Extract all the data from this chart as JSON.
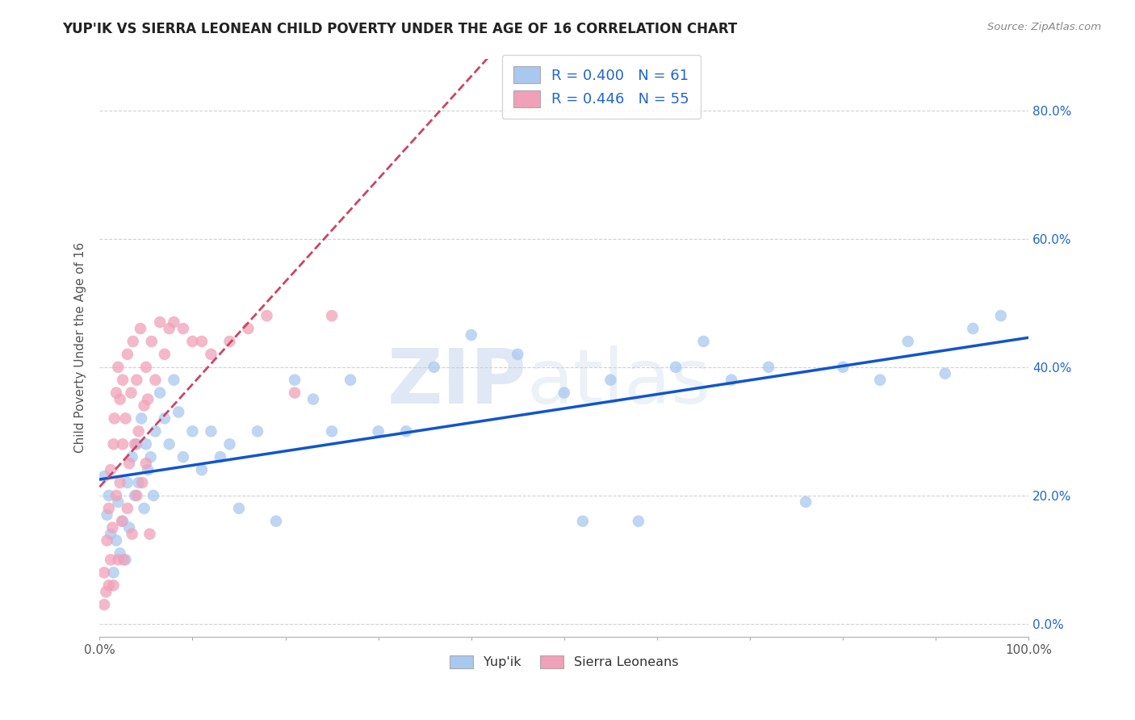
{
  "title": "YUP'IK VS SIERRA LEONEAN CHILD POVERTY UNDER THE AGE OF 16 CORRELATION CHART",
  "source": "Source: ZipAtlas.com",
  "ylabel": "Child Poverty Under the Age of 16",
  "legend_label1": "Yup'ik",
  "legend_label2": "Sierra Leoneans",
  "R1": 0.4,
  "N1": 61,
  "R2": 0.446,
  "N2": 55,
  "xlim": [
    0.0,
    1.0
  ],
  "ylim": [
    -0.02,
    0.88
  ],
  "yticks": [
    0.0,
    0.2,
    0.4,
    0.6,
    0.8
  ],
  "color_blue": "#a8c8f0",
  "color_pink": "#f0a0b8",
  "line_blue": "#1055cc",
  "line_pink": "#cc4466",
  "watermark_zip": "ZIP",
  "watermark_atlas": "atlas",
  "yup_x": [
    0.005,
    0.008,
    0.01,
    0.012,
    0.015,
    0.018,
    0.02,
    0.022,
    0.025,
    0.028,
    0.03,
    0.032,
    0.035,
    0.038,
    0.04,
    0.042,
    0.045,
    0.048,
    0.05,
    0.052,
    0.055,
    0.058,
    0.06,
    0.065,
    0.07,
    0.075,
    0.08,
    0.085,
    0.09,
    0.1,
    0.11,
    0.12,
    0.13,
    0.14,
    0.15,
    0.17,
    0.19,
    0.21,
    0.23,
    0.25,
    0.27,
    0.3,
    0.33,
    0.36,
    0.4,
    0.45,
    0.5,
    0.52,
    0.55,
    0.58,
    0.62,
    0.65,
    0.68,
    0.72,
    0.76,
    0.8,
    0.84,
    0.87,
    0.91,
    0.94,
    0.97
  ],
  "yup_y": [
    0.23,
    0.17,
    0.2,
    0.14,
    0.08,
    0.13,
    0.19,
    0.11,
    0.16,
    0.1,
    0.22,
    0.15,
    0.26,
    0.2,
    0.28,
    0.22,
    0.32,
    0.18,
    0.28,
    0.24,
    0.26,
    0.2,
    0.3,
    0.36,
    0.32,
    0.28,
    0.38,
    0.33,
    0.26,
    0.3,
    0.24,
    0.3,
    0.26,
    0.28,
    0.18,
    0.3,
    0.16,
    0.38,
    0.35,
    0.3,
    0.38,
    0.3,
    0.3,
    0.4,
    0.45,
    0.42,
    0.36,
    0.16,
    0.38,
    0.16,
    0.4,
    0.44,
    0.38,
    0.4,
    0.19,
    0.4,
    0.38,
    0.44,
    0.39,
    0.46,
    0.48
  ],
  "sle_x": [
    0.005,
    0.005,
    0.007,
    0.008,
    0.01,
    0.01,
    0.012,
    0.012,
    0.014,
    0.015,
    0.015,
    0.016,
    0.018,
    0.018,
    0.02,
    0.02,
    0.022,
    0.022,
    0.024,
    0.025,
    0.025,
    0.026,
    0.028,
    0.03,
    0.03,
    0.032,
    0.034,
    0.035,
    0.036,
    0.038,
    0.04,
    0.04,
    0.042,
    0.044,
    0.046,
    0.048,
    0.05,
    0.05,
    0.052,
    0.054,
    0.056,
    0.06,
    0.065,
    0.07,
    0.075,
    0.08,
    0.09,
    0.1,
    0.11,
    0.12,
    0.14,
    0.16,
    0.18,
    0.21,
    0.25
  ],
  "sle_y": [
    0.03,
    0.08,
    0.05,
    0.13,
    0.06,
    0.18,
    0.1,
    0.24,
    0.15,
    0.06,
    0.28,
    0.32,
    0.2,
    0.36,
    0.1,
    0.4,
    0.22,
    0.35,
    0.16,
    0.28,
    0.38,
    0.1,
    0.32,
    0.18,
    0.42,
    0.25,
    0.36,
    0.14,
    0.44,
    0.28,
    0.2,
    0.38,
    0.3,
    0.46,
    0.22,
    0.34,
    0.25,
    0.4,
    0.35,
    0.14,
    0.44,
    0.38,
    0.47,
    0.42,
    0.46,
    0.47,
    0.46,
    0.44,
    0.44,
    0.42,
    0.44,
    0.46,
    0.48,
    0.36,
    0.48
  ]
}
